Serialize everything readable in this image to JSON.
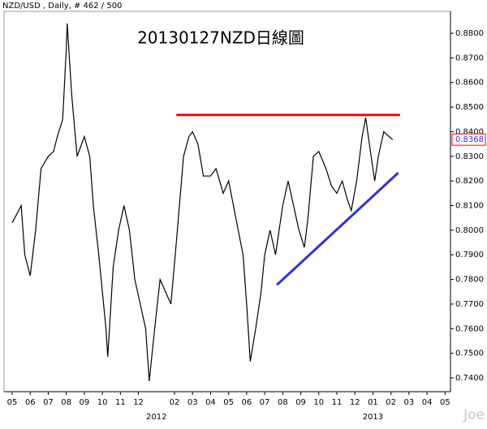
{
  "chart_data": {
    "type": "line",
    "header": "NZD/USD , Daily, # 462 / 500",
    "title": "20130127NZD日線圖",
    "watermark": "Joe",
    "series": [
      {
        "color": "#000000",
        "x": [
          0,
          0.5,
          0.7,
          1,
          1.3,
          1.6,
          2,
          2.3,
          2.5,
          2.8,
          3,
          3.05,
          3.3,
          3.6,
          4,
          4.3,
          4.5,
          4.8,
          5.2,
          5.3,
          5.6,
          5.9,
          6.2,
          6.5,
          6.8,
          7.1,
          7.4,
          7.6,
          7.9,
          8.2,
          8.5,
          8.8,
          9.1,
          9.5,
          9.8,
          10,
          10.3,
          10.6,
          11,
          11.3,
          11.7,
          12,
          12.4,
          12.8,
          13,
          13.2,
          13.5,
          13.8,
          14,
          14.3,
          14.6,
          15,
          15.3,
          15.6,
          15.9,
          16.2,
          16.4,
          16.7,
          17,
          17.4,
          17.7,
          18,
          18.3,
          18.6,
          18.8,
          19.1,
          19.4,
          19.6,
          19.9,
          20.1,
          20.3,
          20.6,
          20.9,
          21.1
        ],
        "values": [
          0.803,
          0.81,
          0.79,
          0.7815,
          0.8,
          0.825,
          0.83,
          0.832,
          0.838,
          0.845,
          0.8737,
          0.884,
          0.855,
          0.83,
          0.838,
          0.83,
          0.81,
          0.79,
          0.76,
          0.7486,
          0.785,
          0.8,
          0.81,
          0.8,
          0.78,
          0.77,
          0.76,
          0.7387,
          0.76,
          0.78,
          0.775,
          0.77,
          0.795,
          0.83,
          0.838,
          0.84,
          0.835,
          0.822,
          0.822,
          0.825,
          0.815,
          0.82,
          0.805,
          0.79,
          0.77,
          0.7467,
          0.76,
          0.775,
          0.79,
          0.8,
          0.79,
          0.81,
          0.82,
          0.81,
          0.8,
          0.793,
          0.805,
          0.83,
          0.832,
          0.825,
          0.818,
          0.815,
          0.82,
          0.812,
          0.808,
          0.82,
          0.838,
          0.8457,
          0.83,
          0.82,
          0.83,
          0.84,
          0.838,
          0.8368
        ]
      }
    ],
    "trend_lines": [
      {
        "color": "#e01010",
        "x": [
          9.1,
          21.5
        ],
        "values": [
          0.8468,
          0.8468
        ]
      },
      {
        "color": "#3333cc",
        "x": [
          14.68,
          21.4
        ],
        "values": [
          0.7778,
          0.8233
        ]
      }
    ],
    "last_value": {
      "value": 0.8368,
      "label": "0.8368"
    },
    "xlim": [
      -0.45,
      24.3
    ],
    "xticks": [
      {
        "value": 0,
        "label": "05"
      },
      {
        "value": 1,
        "label": "06"
      },
      {
        "value": 2,
        "label": "07"
      },
      {
        "value": 3,
        "label": "08"
      },
      {
        "value": 4,
        "label": "09"
      },
      {
        "value": 5,
        "label": "10"
      },
      {
        "value": 6,
        "label": "11"
      },
      {
        "value": 7,
        "label": "12"
      },
      {
        "value": 9,
        "label": "02"
      },
      {
        "value": 10,
        "label": "03"
      },
      {
        "value": 11,
        "label": "04"
      },
      {
        "value": 12,
        "label": "05"
      },
      {
        "value": 13,
        "label": "06"
      },
      {
        "value": 14,
        "label": "07"
      },
      {
        "value": 15,
        "label": "08"
      },
      {
        "value": 16,
        "label": "09"
      },
      {
        "value": 17,
        "label": "10"
      },
      {
        "value": 18,
        "label": "11"
      },
      {
        "value": 19,
        "label": "12"
      },
      {
        "value": 20,
        "label": "01"
      },
      {
        "value": 21,
        "label": "02"
      },
      {
        "value": 22,
        "label": "03"
      },
      {
        "value": 23,
        "label": "04"
      },
      {
        "value": 24,
        "label": "05"
      }
    ],
    "year_ticks": [
      {
        "value": 8,
        "label": "2012"
      },
      {
        "value": 20,
        "label": "2013"
      }
    ],
    "ylim": [
      0.7344,
      0.8889
    ],
    "yticks": [
      {
        "value": 0.74,
        "label": "0.7400"
      },
      {
        "value": 0.75,
        "label": "0.7500"
      },
      {
        "value": 0.76,
        "label": "0.7600"
      },
      {
        "value": 0.77,
        "label": "0.7700"
      },
      {
        "value": 0.78,
        "label": "0.7800"
      },
      {
        "value": 0.79,
        "label": "0.7900"
      },
      {
        "value": 0.8,
        "label": "0.8000"
      },
      {
        "value": 0.81,
        "label": "0.8100"
      },
      {
        "value": 0.82,
        "label": "0.8200"
      },
      {
        "value": 0.83,
        "label": "0.8300"
      },
      {
        "value": 0.84,
        "label": "0.8400"
      },
      {
        "value": 0.85,
        "label": "0.8500"
      },
      {
        "value": 0.86,
        "label": "0.8600"
      },
      {
        "value": 0.87,
        "label": "0.8700"
      },
      {
        "value": 0.88,
        "label": "0.8800"
      }
    ]
  }
}
